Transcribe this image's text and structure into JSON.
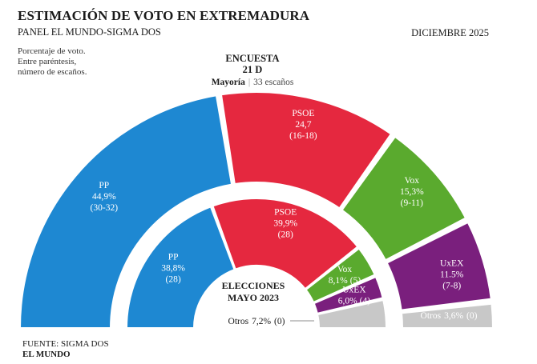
{
  "header": {
    "title": "ESTIMACIÓN DE VOTO EN EXTREMADURA",
    "subtitle": "PANEL EL MUNDO-SIGMA DOS",
    "date": "DICIEMBRE 2025",
    "note_lines": [
      "Porcentaje de voto.",
      "Entre paréntesis,",
      "número de escaños."
    ]
  },
  "survey": {
    "line1": "ENCUESTA",
    "line2": "21 D",
    "majority_label": "Mayoría",
    "majority_value": "33 escaños"
  },
  "footer": {
    "source": "FUENTE: SIGMA DOS",
    "brand": "EL MUNDO"
  },
  "chart_data": [
    {
      "type": "pie",
      "name": "ENCUESTA 21 D",
      "slices": [
        {
          "label": "PP",
          "value": 44.9,
          "value_text": "44,9%",
          "seats": "(30-32)",
          "color": "#1e88d2"
        },
        {
          "label": "PSOE",
          "value": 24.7,
          "value_text": "24,7",
          "seats": "(16-18)",
          "color": "#e5283f"
        },
        {
          "label": "Vox",
          "value": 15.3,
          "value_text": "15,3%",
          "seats": "(9-11)",
          "color": "#5aaa2e"
        },
        {
          "label": "UxEX",
          "value": 11.5,
          "value_text": "11.5%",
          "seats": "(7-8)",
          "color": "#7a1f7d"
        },
        {
          "label": "Otros",
          "value": 3.6,
          "value_text": "3,6%",
          "seats": "(0)",
          "color": "#c8c8c8"
        }
      ]
    },
    {
      "type": "pie",
      "name": "ELECCIONES MAYO 2023",
      "title_line1": "ELECCIONES",
      "title_line2": "MAYO 2023",
      "slices": [
        {
          "label": "PP",
          "value": 38.8,
          "value_text": "38,8%",
          "seats": "(28)",
          "color": "#1e88d2"
        },
        {
          "label": "PSOE",
          "value": 39.9,
          "value_text": "39,9%",
          "seats": "(28)",
          "color": "#e5283f"
        },
        {
          "label": "Vox",
          "value": 8.1,
          "value_text": "8,1%",
          "seats": "(5)",
          "color": "#5aaa2e"
        },
        {
          "label": "UxEX",
          "value": 6.0,
          "value_text": "6,0%",
          "seats": "(4)",
          "color": "#7a1f7d"
        },
        {
          "label": "Otros",
          "value": 7.2,
          "value_text": "7,2%",
          "seats": "(0)",
          "color": "#c8c8c8"
        }
      ]
    }
  ]
}
